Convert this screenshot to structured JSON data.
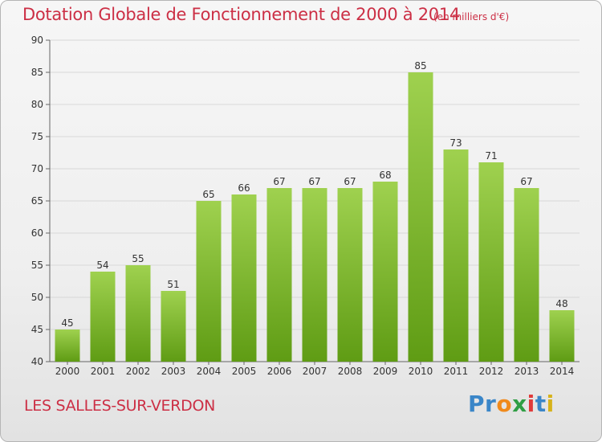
{
  "header": {
    "title": "Dotation Globale de Fonctionnement de 2000 à 2014",
    "unit": "(en milliers d'€)"
  },
  "footer": {
    "commune": "LES SALLES-SUR-VERDON",
    "brand": [
      "Pr",
      "o",
      "x",
      "i",
      "t",
      "i"
    ]
  },
  "colors": {
    "title": "#cc2f45",
    "bar_top": "#9fd14f",
    "bar_bottom": "#5f9c14",
    "grid": "#d8d8d8",
    "axis": "#666666"
  },
  "chart_data": {
    "type": "bar",
    "categories": [
      "2000",
      "2001",
      "2002",
      "2003",
      "2004",
      "2005",
      "2006",
      "2007",
      "2008",
      "2009",
      "2010",
      "2011",
      "2012",
      "2013",
      "2014"
    ],
    "values": [
      45,
      54,
      55,
      51,
      65,
      66,
      67,
      67,
      67,
      68,
      85,
      73,
      71,
      67,
      48
    ],
    "title": "Dotation Globale de Fonctionnement de 2000 à 2014",
    "ylim": [
      40,
      90
    ],
    "yticks": [
      40,
      45,
      50,
      55,
      60,
      65,
      70,
      75,
      80,
      85,
      90
    ],
    "grid": true,
    "data_labels": true
  }
}
